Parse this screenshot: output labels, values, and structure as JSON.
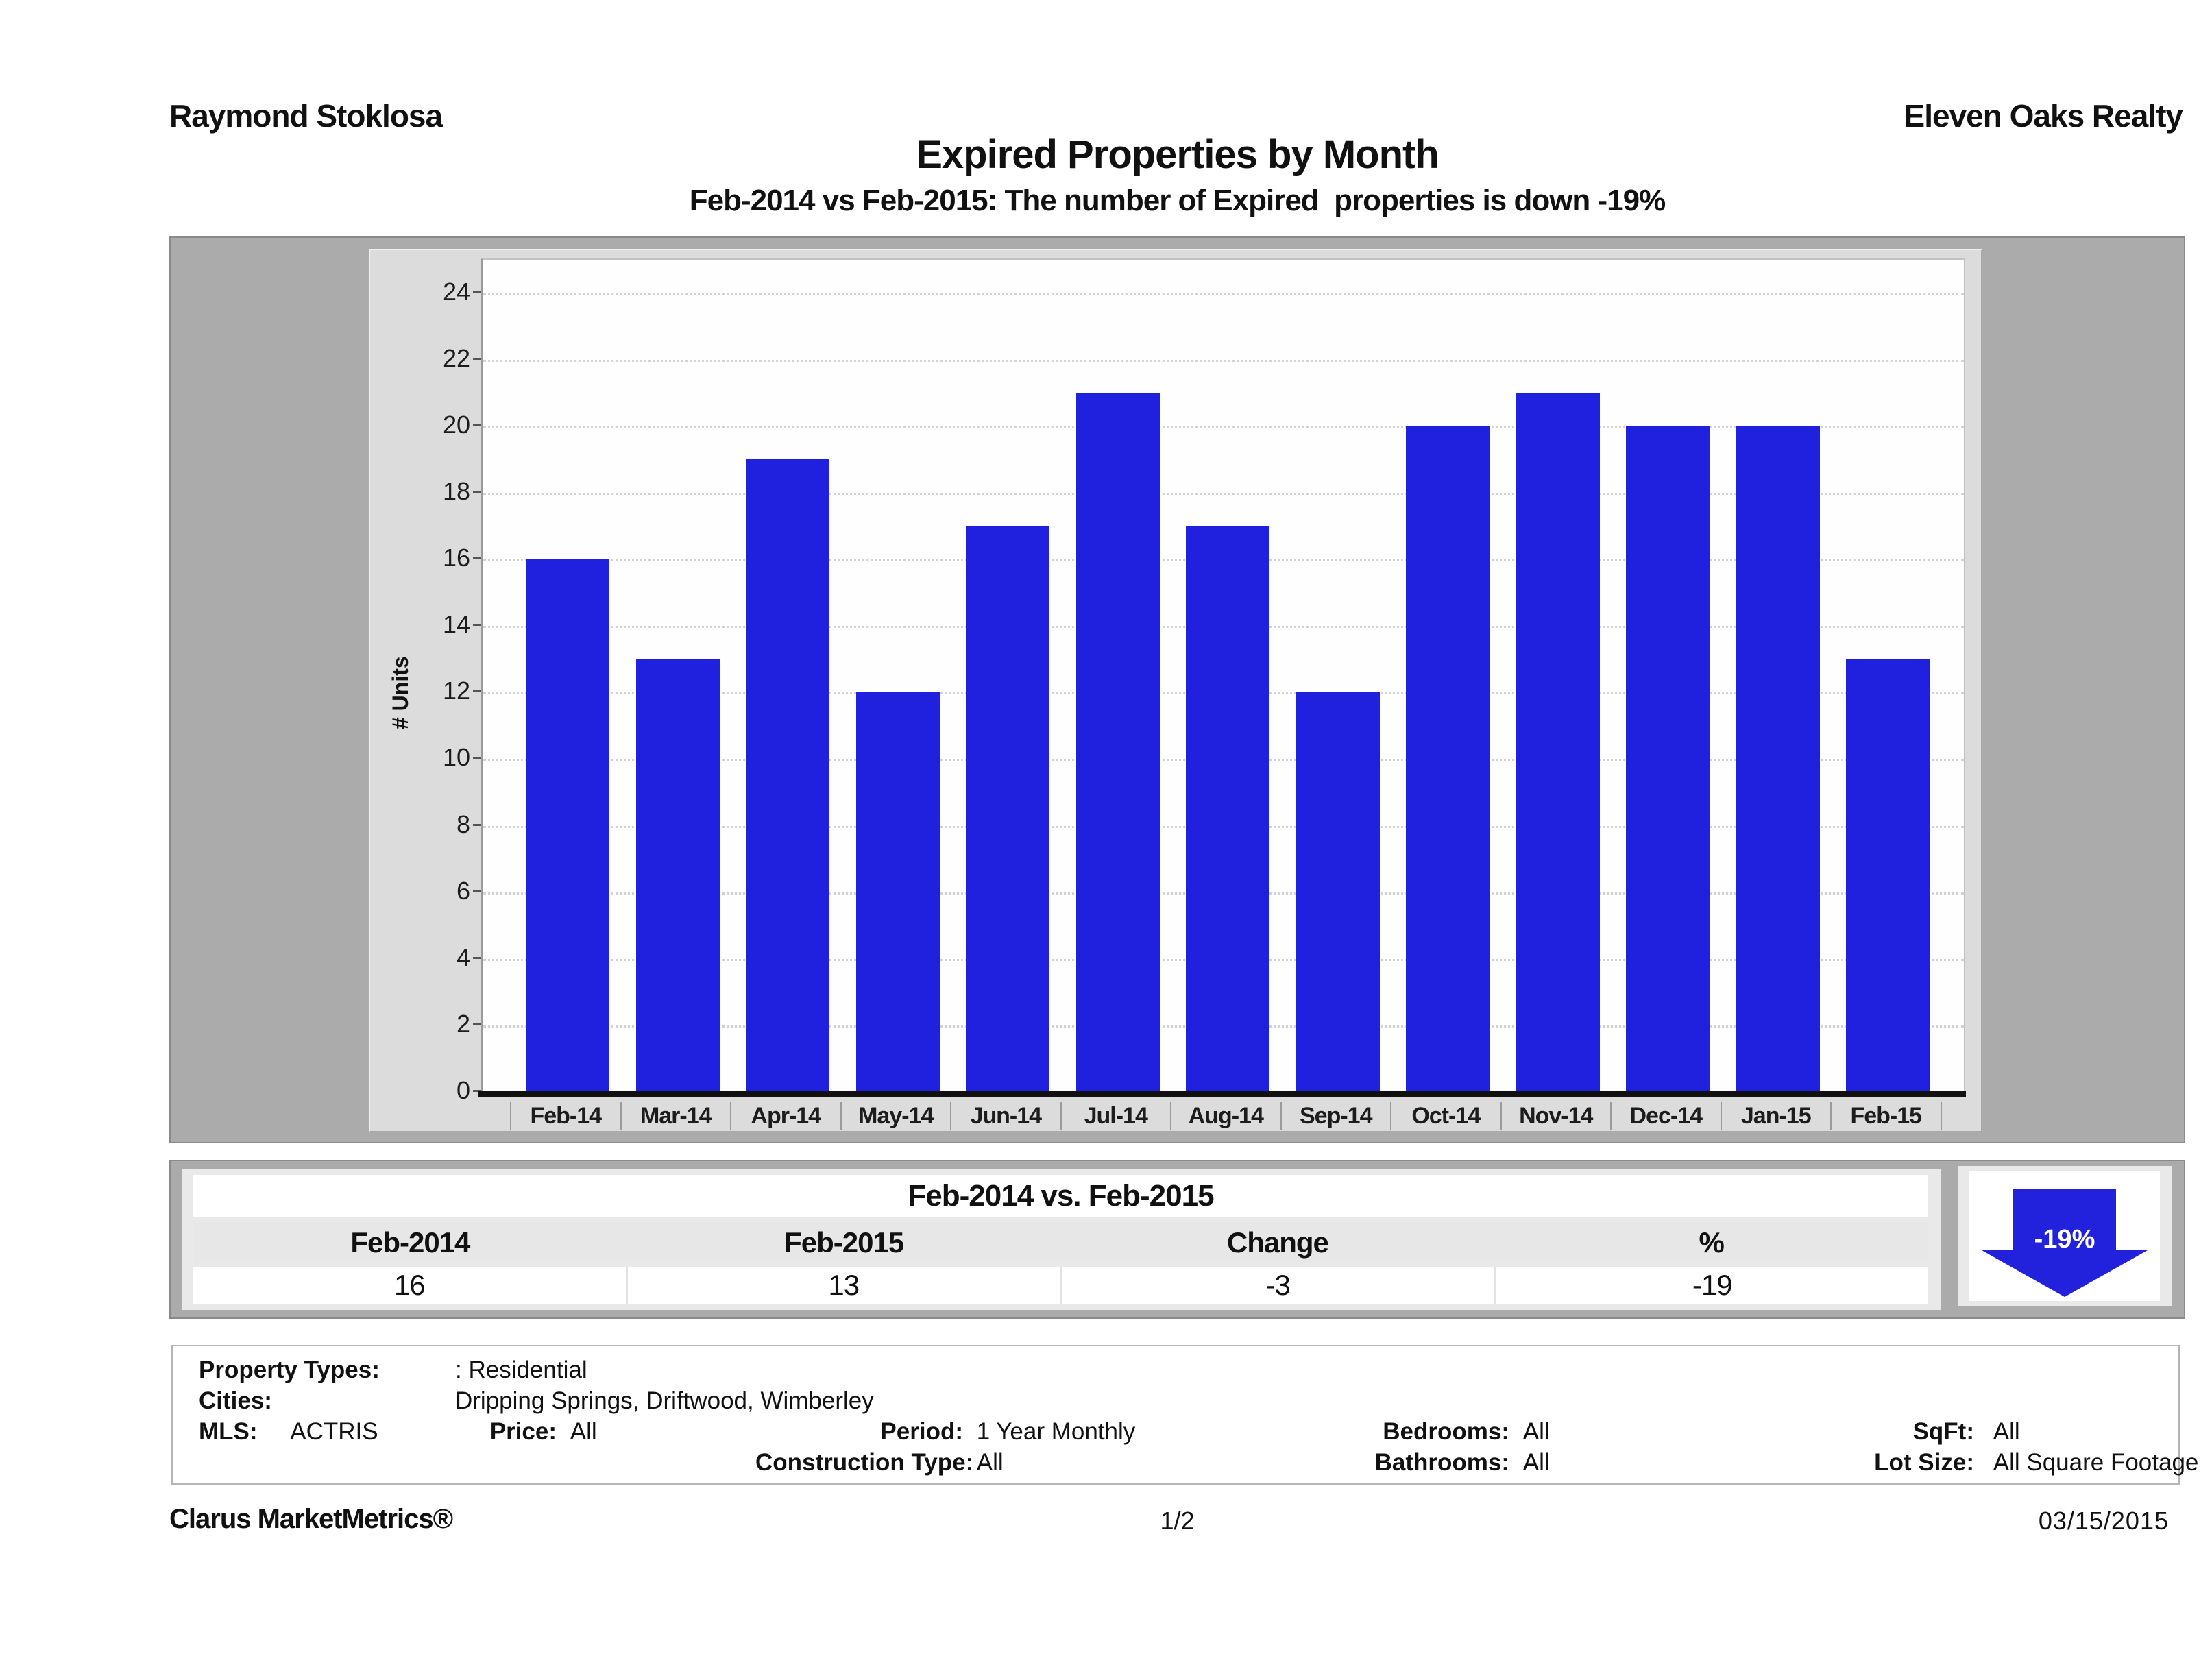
{
  "header": {
    "agent": "Raymond Stoklosa",
    "company": "Eleven Oaks Realty"
  },
  "chart_data": {
    "type": "bar",
    "title": "Expired Properties by Month",
    "subtitle": "Feb-2014 vs Feb-2015: The number of Expired  properties is down -19%",
    "categories": [
      "Feb-14",
      "Mar-14",
      "Apr-14",
      "May-14",
      "Jun-14",
      "Jul-14",
      "Aug-14",
      "Sep-14",
      "Oct-14",
      "Nov-14",
      "Dec-14",
      "Jan-15",
      "Feb-15"
    ],
    "values": [
      16,
      13,
      19,
      12,
      17,
      21,
      17,
      12,
      20,
      21,
      20,
      20,
      13
    ],
    "xlabel": "",
    "ylabel": "# Units",
    "ylim": [
      0,
      25
    ],
    "yticks": [
      0,
      2,
      4,
      6,
      8,
      10,
      12,
      14,
      16,
      18,
      20,
      22,
      24
    ],
    "grid": "horizontal-dotted",
    "legend": "none",
    "bar_color": "#2020df"
  },
  "comparison": {
    "title": "Feb-2014 vs. Feb-2015",
    "headers": [
      "Feb-2014",
      "Feb-2015",
      "Change",
      "%"
    ],
    "values": [
      "16",
      "13",
      "-3",
      "-19"
    ],
    "badge": {
      "label": "-19%",
      "direction": "down",
      "color": "#2222dd"
    }
  },
  "filters": {
    "property_types_label": "Property Types:",
    "property_types_value": ": Residential",
    "cities_label": "Cities:",
    "cities_value": "Dripping Springs, Driftwood, Wimberley",
    "mls_label": "MLS:",
    "mls_value": "ACTRIS",
    "price_label": "Price:",
    "price_value": "All",
    "period_label": "Period:",
    "period_value": "1 Year Monthly",
    "bedrooms_label": "Bedrooms:",
    "bedrooms_value": "All",
    "sqft_label": "SqFt:",
    "sqft_value": "All",
    "construction_label": "Construction Type:",
    "construction_value": "All",
    "bathrooms_label": "Bathrooms:",
    "bathrooms_value": "All",
    "lot_size_label": "Lot Size:",
    "lot_size_value": "All Square Footage"
  },
  "footer": {
    "brand": "Clarus MarketMetrics®",
    "page": "1/2",
    "date": "03/15/2015"
  }
}
